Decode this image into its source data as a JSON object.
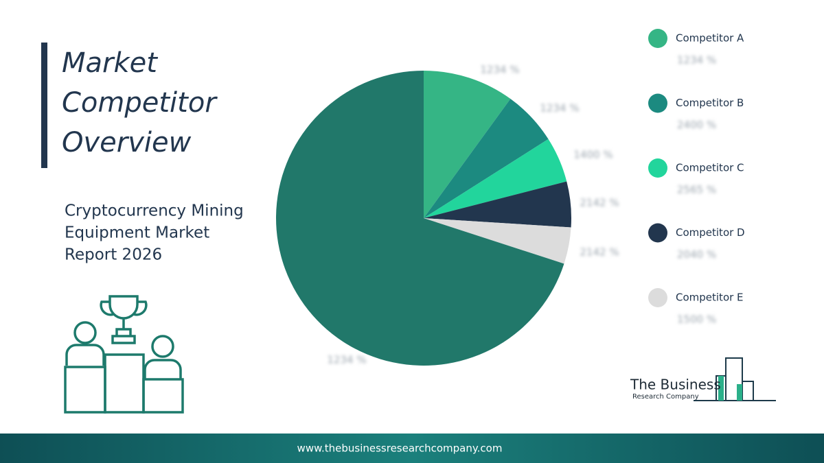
{
  "header": {
    "title_lines": [
      "Market",
      "Competitor",
      "Overview"
    ],
    "subtitle_lines": [
      "Cryptocurrency Mining",
      "Equipment Market",
      "Report 2026"
    ]
  },
  "chart_data": {
    "type": "pie",
    "categories": [
      "Competitor A",
      "Competitor B",
      "Competitor C",
      "Competitor D",
      "Competitor E",
      null
    ],
    "values": [
      10,
      6,
      5,
      5,
      4,
      70
    ],
    "colors": [
      "#35b585",
      "#1c8a80",
      "#22d59c",
      "#22364e",
      "#dcdcdc",
      "#21786a"
    ],
    "annotations": [
      "1234 %",
      "1234 %",
      "1400 %",
      "2142 %",
      "2142 %",
      "1234 %"
    ],
    "legend_annotations": [
      "1234 %",
      "2400 %",
      "2565 %",
      "2040 %",
      "1500 %"
    ],
    "legend": "right"
  },
  "logo": {
    "line1": "The Business",
    "line2": "Research Company"
  },
  "footer": {
    "url": "www.thebusinessresearchcompany.com"
  }
}
